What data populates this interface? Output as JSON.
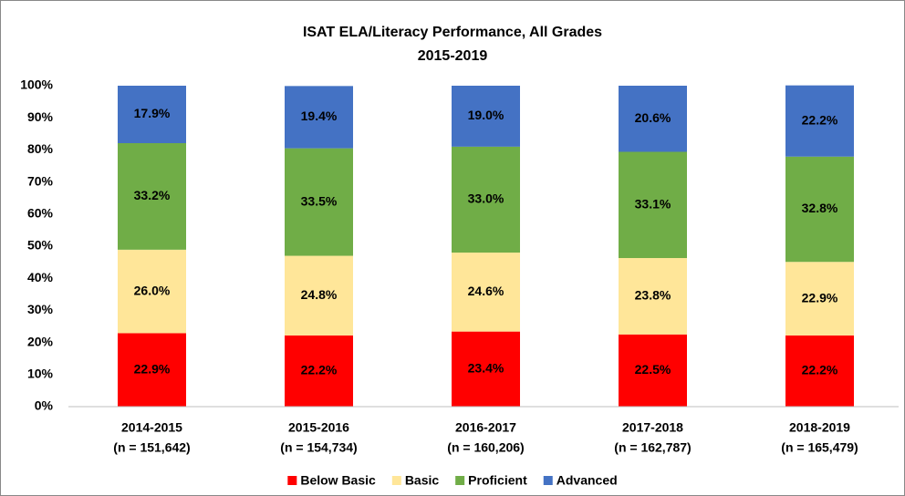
{
  "chart_data": {
    "type": "bar",
    "stacked": true,
    "title": [
      "ISAT ELA/Literacy Performance, All Grades",
      "2015-2019"
    ],
    "categories": [
      [
        "2014-2015",
        "(n = 151,642)"
      ],
      [
        "2015-2016",
        "(n = 154,734)"
      ],
      [
        "2016-2017",
        "(n = 160,206)"
      ],
      [
        "2017-2018",
        "(n = 162,787)"
      ],
      [
        "2018-2019",
        "(n = 165,479)"
      ]
    ],
    "series": [
      {
        "name": "Below Basic",
        "color": "#ff0000",
        "values": [
          22.9,
          22.2,
          23.4,
          22.5,
          22.2
        ],
        "value_labels": [
          "22.9%",
          "22.2%",
          "23.4%",
          "22.5%",
          "22.2%"
        ]
      },
      {
        "name": "Basic",
        "color": "#ffe699",
        "values": [
          26.0,
          24.8,
          24.6,
          23.8,
          22.9
        ],
        "value_labels": [
          "26.0%",
          "24.8%",
          "24.6%",
          "23.8%",
          "22.9%"
        ]
      },
      {
        "name": "Proficient",
        "color": "#70ad47",
        "values": [
          33.2,
          33.5,
          33.0,
          33.1,
          32.8
        ],
        "value_labels": [
          "33.2%",
          "33.5%",
          "33.0%",
          "33.1%",
          "32.8%"
        ]
      },
      {
        "name": "Advanced",
        "color": "#4472c4",
        "values": [
          17.9,
          19.4,
          19.0,
          20.6,
          22.2
        ],
        "value_labels": [
          "17.9%",
          "19.4%",
          "19.0%",
          "20.6%",
          "22.2%"
        ]
      }
    ],
    "ylim": [
      0,
      100
    ],
    "yticks": [
      {
        "value": 0,
        "label": "0%"
      },
      {
        "value": 10,
        "label": "10%"
      },
      {
        "value": 20,
        "label": "20%"
      },
      {
        "value": 30,
        "label": "30%"
      },
      {
        "value": 40,
        "label": "40%"
      },
      {
        "value": 50,
        "label": "50%"
      },
      {
        "value": 60,
        "label": "60%"
      },
      {
        "value": 70,
        "label": "70%"
      },
      {
        "value": 80,
        "label": "80%"
      },
      {
        "value": 90,
        "label": "90%"
      },
      {
        "value": 100,
        "label": "100%"
      }
    ],
    "grid": false,
    "legend": "bottom"
  }
}
